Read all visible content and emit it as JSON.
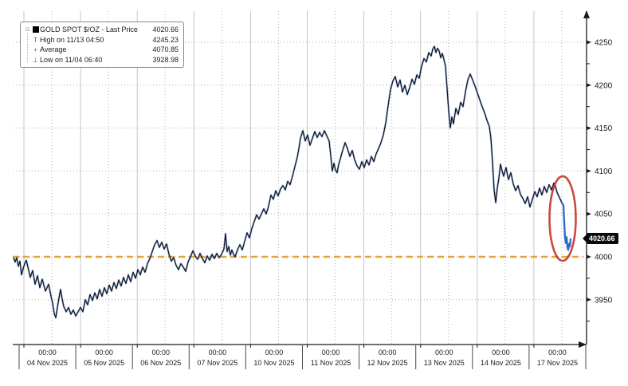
{
  "chart_data": {
    "type": "line",
    "title": "GOLD SPOT $/OZ - Last Price",
    "last_price": 4020.66,
    "stats": {
      "high": {
        "label": "High on 11/13 04:50",
        "value": 4245.23
      },
      "average": {
        "label": "Average",
        "value": 4070.85
      },
      "low": {
        "label": "Low on 11/04 06:40",
        "value": 3928.98
      }
    },
    "legend_rows": [
      {
        "marker": "series-swatch",
        "glyph": "",
        "label": "GOLD SPOT $/OZ - Last Price",
        "value": "4020.66"
      },
      {
        "marker": "high",
        "glyph": "T",
        "label": "High on 11/13 04:50",
        "value": "4245.23"
      },
      {
        "marker": "average",
        "glyph": "+",
        "label": "Average",
        "value": "4070.85"
      },
      {
        "marker": "low",
        "glyph": "⊥",
        "label": "Low on 11/04 06:40",
        "value": "3928.98"
      }
    ],
    "collapse_glyph": "⊟",
    "y_axis": {
      "ticks": [
        3950,
        4000,
        4050,
        4100,
        4150,
        4200,
        4250
      ],
      "minor_ticks": [
        3925,
        3975,
        4025,
        4075,
        4125,
        4175,
        4225
      ],
      "range": [
        3912,
        4268
      ],
      "side": "right"
    },
    "x_axis": {
      "time_label": "00:00",
      "dates": [
        "04 Nov 2025",
        "05 Nov 2025",
        "06 Nov 2025",
        "07 Nov 2025",
        "10 Nov 2025",
        "11 Nov 2025",
        "12 Nov 2025",
        "13 Nov 2025",
        "14 Nov 2025",
        "17 Nov 2025"
      ]
    },
    "support_line": {
      "price": 4000,
      "style": "dashed",
      "color": "#E3A43C"
    },
    "highlight": {
      "shape": "ellipse",
      "color": "#C6342B",
      "around": "final sell-off to 4020.66"
    },
    "grid": {
      "h_dotted_every": 50,
      "v_solid": "midnight",
      "v_dotted": "mid-day"
    },
    "series": [
      {
        "name": "GOLD SPOT $/OZ",
        "color_main": "#0d1018",
        "color_halo": "#4a79c4",
        "color_tail": "#2f68cc",
        "tail_from_x": 704,
        "x_unit": "px (chart x position; day sections are 71.1px wide starting at x=24)",
        "points": [
          [
            17,
            3999
          ],
          [
            19,
            3994
          ],
          [
            21,
            3999
          ],
          [
            23,
            3989
          ],
          [
            25,
            3995
          ],
          [
            27,
            3979
          ],
          [
            29,
            3986
          ],
          [
            31,
            3992
          ],
          [
            33,
            3996
          ],
          [
            35,
            3988
          ],
          [
            38,
            3976
          ],
          [
            41,
            3984
          ],
          [
            44,
            3968
          ],
          [
            47,
            3978
          ],
          [
            50,
            3964
          ],
          [
            53,
            3974
          ],
          [
            57,
            3960
          ],
          [
            61,
            3968
          ],
          [
            64,
            3954
          ],
          [
            66,
            3946
          ],
          [
            68,
            3934
          ],
          [
            70,
            3928.98
          ],
          [
            72,
            3941
          ],
          [
            74,
            3952
          ],
          [
            76,
            3962
          ],
          [
            78,
            3951
          ],
          [
            80,
            3942
          ],
          [
            83,
            3936
          ],
          [
            86,
            3941
          ],
          [
            89,
            3933
          ],
          [
            92,
            3938
          ],
          [
            95,
            3931
          ],
          [
            98,
            3936
          ],
          [
            101,
            3941
          ],
          [
            104,
            3936
          ],
          [
            107,
            3950
          ],
          [
            110,
            3944
          ],
          [
            113,
            3956
          ],
          [
            116,
            3949
          ],
          [
            119,
            3958
          ],
          [
            122,
            3951
          ],
          [
            125,
            3962
          ],
          [
            128,
            3954
          ],
          [
            131,
            3964
          ],
          [
            134,
            3957
          ],
          [
            137,
            3967
          ],
          [
            140,
            3960
          ],
          [
            143,
            3970
          ],
          [
            146,
            3963
          ],
          [
            149,
            3973
          ],
          [
            152,
            3966
          ],
          [
            155,
            3976
          ],
          [
            158,
            3969
          ],
          [
            161,
            3979
          ],
          [
            164,
            3971
          ],
          [
            167,
            3982
          ],
          [
            170,
            3975
          ],
          [
            173,
            3985
          ],
          [
            176,
            3979
          ],
          [
            179,
            3988
          ],
          [
            182,
            3982
          ],
          [
            185,
            3992
          ],
          [
            188,
            3998
          ],
          [
            191,
            4006
          ],
          [
            194,
            4014
          ],
          [
            197,
            4019
          ],
          [
            200,
            4011
          ],
          [
            203,
            4017
          ],
          [
            206,
            4009
          ],
          [
            209,
            4015
          ],
          [
            212,
            4003
          ],
          [
            215,
            3995
          ],
          [
            218,
            3999
          ],
          [
            221,
            3990
          ],
          [
            224,
            3985
          ],
          [
            227,
            3992
          ],
          [
            230,
            3988
          ],
          [
            233,
            3983
          ],
          [
            236,
            3994
          ],
          [
            239,
            4000
          ],
          [
            242,
            4007
          ],
          [
            245,
            4001
          ],
          [
            248,
            3997
          ],
          [
            251,
            4004
          ],
          [
            254,
            3998
          ],
          [
            257,
            3993
          ],
          [
            260,
            4001
          ],
          [
            263,
            3996
          ],
          [
            266,
            4003
          ],
          [
            269,
            3998
          ],
          [
            272,
            4004
          ],
          [
            275,
            3999
          ],
          [
            278,
            4003
          ],
          [
            281,
            4009
          ],
          [
            283,
            4027
          ],
          [
            285,
            4006
          ],
          [
            287,
            4012
          ],
          [
            289,
            4002
          ],
          [
            291,
            4008
          ],
          [
            293,
            4003
          ],
          [
            295,
            4000
          ],
          [
            298,
            4008
          ],
          [
            301,
            4014
          ],
          [
            304,
            4008
          ],
          [
            307,
            4018
          ],
          [
            310,
            4028
          ],
          [
            313,
            4022
          ],
          [
            316,
            4033
          ],
          [
            319,
            4041
          ],
          [
            322,
            4049
          ],
          [
            325,
            4044
          ],
          [
            328,
            4050
          ],
          [
            331,
            4056
          ],
          [
            334,
            4050
          ],
          [
            337,
            4059
          ],
          [
            340,
            4072
          ],
          [
            343,
            4067
          ],
          [
            346,
            4077
          ],
          [
            349,
            4071
          ],
          [
            352,
            4079
          ],
          [
            355,
            4083
          ],
          [
            358,
            4078
          ],
          [
            361,
            4088
          ],
          [
            364,
            4084
          ],
          [
            367,
            4094
          ],
          [
            370,
            4105
          ],
          [
            373,
            4116
          ],
          [
            375,
            4126
          ],
          [
            377,
            4138
          ],
          [
            380,
            4147
          ],
          [
            383,
            4135
          ],
          [
            386,
            4142
          ],
          [
            389,
            4130
          ],
          [
            392,
            4138
          ],
          [
            395,
            4146
          ],
          [
            398,
            4139
          ],
          [
            401,
            4145
          ],
          [
            404,
            4140
          ],
          [
            407,
            4147
          ],
          [
            410,
            4141
          ],
          [
            413,
            4135
          ],
          [
            415,
            4118
          ],
          [
            417,
            4100
          ],
          [
            419,
            4109
          ],
          [
            421,
            4101
          ],
          [
            423,
            4098
          ],
          [
            425,
            4108
          ],
          [
            427,
            4114
          ],
          [
            429,
            4121
          ],
          [
            431,
            4127
          ],
          [
            433,
            4133
          ],
          [
            436,
            4126
          ],
          [
            439,
            4117
          ],
          [
            442,
            4124
          ],
          [
            445,
            4113
          ],
          [
            448,
            4106
          ],
          [
            451,
            4102
          ],
          [
            454,
            4111
          ],
          [
            457,
            4104
          ],
          [
            460,
            4113
          ],
          [
            463,
            4107
          ],
          [
            466,
            4117
          ],
          [
            469,
            4111
          ],
          [
            472,
            4120
          ],
          [
            475,
            4126
          ],
          [
            478,
            4133
          ],
          [
            481,
            4142
          ],
          [
            484,
            4156
          ],
          [
            487,
            4176
          ],
          [
            490,
            4195
          ],
          [
            493,
            4205
          ],
          [
            496,
            4210
          ],
          [
            499,
            4198
          ],
          [
            502,
            4206
          ],
          [
            505,
            4192
          ],
          [
            508,
            4200
          ],
          [
            511,
            4189
          ],
          [
            514,
            4197
          ],
          [
            517,
            4207
          ],
          [
            520,
            4201
          ],
          [
            523,
            4212
          ],
          [
            526,
            4208
          ],
          [
            529,
            4222
          ],
          [
            532,
            4231
          ],
          [
            535,
            4227
          ],
          [
            538,
            4238
          ],
          [
            541,
            4234
          ],
          [
            543,
            4242
          ],
          [
            545,
            4245.23
          ],
          [
            547,
            4238
          ],
          [
            549,
            4243
          ],
          [
            551,
            4240
          ],
          [
            553,
            4232
          ],
          [
            555,
            4237
          ],
          [
            557,
            4230
          ],
          [
            559,
            4222
          ],
          [
            561,
            4196
          ],
          [
            563,
            4170
          ],
          [
            565,
            4150
          ],
          [
            567,
            4163
          ],
          [
            569,
            4155
          ],
          [
            572,
            4173
          ],
          [
            575,
            4166
          ],
          [
            578,
            4180
          ],
          [
            581,
            4175
          ],
          [
            584,
            4192
          ],
          [
            587,
            4206
          ],
          [
            590,
            4213
          ],
          [
            593,
            4206
          ],
          [
            596,
            4199
          ],
          [
            599,
            4191
          ],
          [
            602,
            4183
          ],
          [
            605,
            4175
          ],
          [
            608,
            4168
          ],
          [
            611,
            4159
          ],
          [
            614,
            4152
          ],
          [
            616,
            4138
          ],
          [
            618,
            4110
          ],
          [
            620,
            4078
          ],
          [
            622,
            4063
          ],
          [
            624,
            4080
          ],
          [
            626,
            4092
          ],
          [
            628,
            4108
          ],
          [
            630,
            4100
          ],
          [
            632,
            4094
          ],
          [
            635,
            4104
          ],
          [
            638,
            4090
          ],
          [
            641,
            4098
          ],
          [
            644,
            4085
          ],
          [
            647,
            4077
          ],
          [
            650,
            4083
          ],
          [
            653,
            4073
          ],
          [
            656,
            4068
          ],
          [
            659,
            4062
          ],
          [
            662,
            4070
          ],
          [
            665,
            4058
          ],
          [
            668,
            4067
          ],
          [
            671,
            4076
          ],
          [
            674,
            4070
          ],
          [
            677,
            4080
          ],
          [
            680,
            4072
          ],
          [
            683,
            4082
          ],
          [
            686,
            4075
          ],
          [
            689,
            4084
          ],
          [
            692,
            4078
          ],
          [
            695,
            4086
          ],
          [
            697,
            4082
          ],
          [
            699,
            4075
          ],
          [
            701,
            4071
          ],
          [
            703,
            4067
          ],
          [
            705,
            4063
          ],
          [
            707,
            4060
          ],
          [
            708,
            4040
          ],
          [
            709,
            4022
          ],
          [
            710,
            4016
          ],
          [
            711,
            4023
          ],
          [
            712,
            4011
          ],
          [
            713,
            4008
          ],
          [
            714,
            4015
          ],
          [
            715,
            4012
          ],
          [
            716,
            4020.66
          ]
        ]
      }
    ]
  },
  "colors": {
    "background": "#ffffff",
    "axis": "#1a1a1a",
    "grid_solid": "#c5c5c5",
    "grid_dotted": "#adadad",
    "support_dash": "#E3A43C",
    "highlight_red": "#C6342B",
    "tag_bg": "#0a0a0a",
    "tag_text": "#ffffff"
  },
  "price_tag": {
    "value": "4020.66"
  }
}
